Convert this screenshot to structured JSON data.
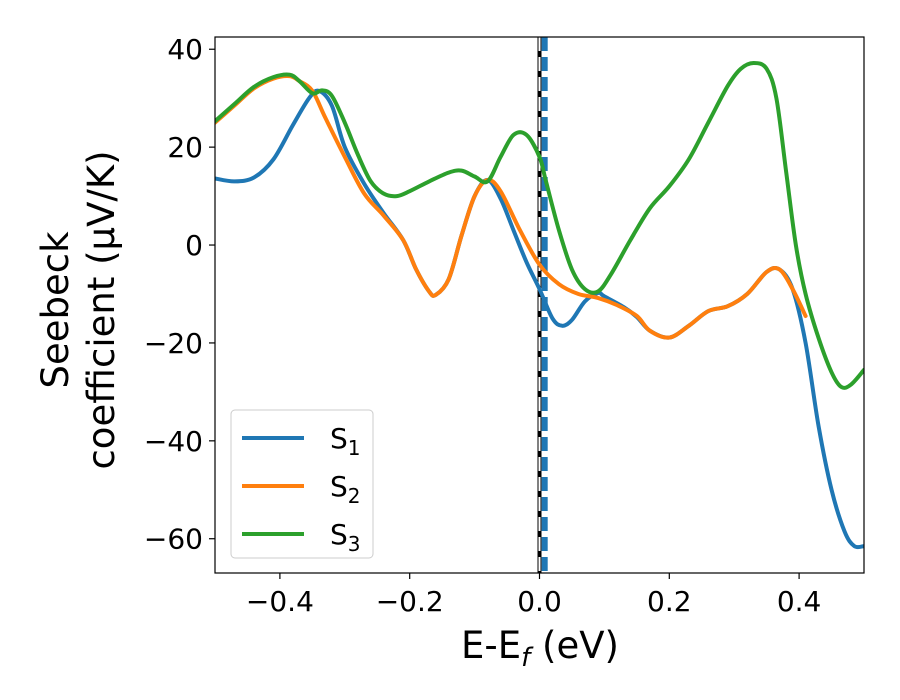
{
  "chart_data": {
    "type": "line",
    "xlabel": "E-E_f (eV)",
    "ylabel_line1": "Seebeck",
    "ylabel_line2": "coefficient  (μV/K)",
    "xlim": [
      -0.5,
      0.5
    ],
    "ylim": [
      -67,
      42.5
    ],
    "grid": false,
    "legend_position": "lower-left",
    "x_ticks": [
      -0.4,
      -0.2,
      0.0,
      0.2,
      0.4
    ],
    "x_tick_labels": [
      "−0.4",
      "−0.2",
      "0.0",
      "0.2",
      "0.4"
    ],
    "y_ticks": [
      -60,
      -40,
      -20,
      0,
      20,
      40
    ],
    "y_tick_labels": [
      "−60",
      "−40",
      "−20",
      "0",
      "20",
      "40"
    ],
    "vlines": [
      {
        "x": 0.0,
        "color": "#000000",
        "style": "solid"
      },
      {
        "x": 0.0,
        "color": "#ffffff",
        "style": "dashed"
      },
      {
        "x": 0.008,
        "color": "#1f77b4",
        "style": "dashed"
      }
    ],
    "series": [
      {
        "name": "S1",
        "color": "#1f77b4",
        "points": [
          [
            -0.5,
            13.6
          ],
          [
            -0.47,
            13.0
          ],
          [
            -0.44,
            13.8
          ],
          [
            -0.41,
            17.5
          ],
          [
            -0.38,
            24.5
          ],
          [
            -0.355,
            30.0
          ],
          [
            -0.34,
            31.5
          ],
          [
            -0.32,
            28.5
          ],
          [
            -0.3,
            20.0
          ],
          [
            -0.27,
            12.5
          ],
          [
            -0.24,
            6.5
          ],
          [
            -0.21,
            1.0
          ],
          [
            -0.19,
            -5.0
          ],
          [
            -0.17,
            -9.5
          ],
          [
            -0.16,
            -10.2
          ],
          [
            -0.14,
            -7.0
          ],
          [
            -0.12,
            2.0
          ],
          [
            -0.1,
            10.0
          ],
          [
            -0.08,
            13.3
          ],
          [
            -0.06,
            9.5
          ],
          [
            -0.04,
            3.0
          ],
          [
            -0.02,
            -3.5
          ],
          [
            0.0,
            -9.0
          ],
          [
            0.02,
            -15.0
          ],
          [
            0.035,
            -16.5
          ],
          [
            0.05,
            -15.3
          ],
          [
            0.07,
            -11.5
          ],
          [
            0.09,
            -9.8
          ],
          [
            0.1,
            -10.5
          ],
          [
            0.13,
            -12.7
          ],
          [
            0.15,
            -14.7
          ],
          [
            0.17,
            -17.5
          ],
          [
            0.2,
            -18.9
          ],
          [
            0.23,
            -16.5
          ],
          [
            0.26,
            -13.5
          ],
          [
            0.29,
            -12.5
          ],
          [
            0.32,
            -10.0
          ],
          [
            0.35,
            -5.5
          ],
          [
            0.37,
            -5.0
          ],
          [
            0.39,
            -9.0
          ],
          [
            0.41,
            -20.0
          ],
          [
            0.43,
            -37.0
          ],
          [
            0.45,
            -50.0
          ],
          [
            0.47,
            -58.5
          ],
          [
            0.485,
            -61.5
          ],
          [
            0.5,
            -61.5
          ]
        ]
      },
      {
        "name": "S2",
        "color": "#ff7f0e",
        "points": [
          [
            -0.5,
            25.0
          ],
          [
            -0.47,
            28.5
          ],
          [
            -0.44,
            32.0
          ],
          [
            -0.41,
            34.0
          ],
          [
            -0.385,
            34.5
          ],
          [
            -0.37,
            33.5
          ],
          [
            -0.35,
            31.5
          ],
          [
            -0.33,
            26.0
          ],
          [
            -0.3,
            18.0
          ],
          [
            -0.27,
            10.5
          ],
          [
            -0.24,
            6.0
          ],
          [
            -0.21,
            1.0
          ],
          [
            -0.19,
            -5.0
          ],
          [
            -0.17,
            -9.5
          ],
          [
            -0.16,
            -10.2
          ],
          [
            -0.14,
            -7.0
          ],
          [
            -0.12,
            2.0
          ],
          [
            -0.1,
            10.0
          ],
          [
            -0.08,
            13.3
          ],
          [
            -0.06,
            11.0
          ],
          [
            -0.03,
            3.0
          ],
          [
            0.0,
            -4.0
          ],
          [
            0.03,
            -8.0
          ],
          [
            0.06,
            -10.0
          ],
          [
            0.09,
            -10.8
          ],
          [
            0.12,
            -12.3
          ],
          [
            0.15,
            -14.5
          ],
          [
            0.17,
            -17.5
          ],
          [
            0.2,
            -18.9
          ],
          [
            0.23,
            -16.5
          ],
          [
            0.26,
            -13.5
          ],
          [
            0.29,
            -12.5
          ],
          [
            0.32,
            -10.0
          ],
          [
            0.35,
            -5.5
          ],
          [
            0.37,
            -5.0
          ],
          [
            0.39,
            -9.0
          ],
          [
            0.41,
            -14.5
          ]
        ]
      },
      {
        "name": "S3",
        "color": "#2ca02c",
        "points": [
          [
            -0.5,
            25.3
          ],
          [
            -0.47,
            28.8
          ],
          [
            -0.44,
            32.3
          ],
          [
            -0.41,
            34.3
          ],
          [
            -0.385,
            34.8
          ],
          [
            -0.37,
            33.5
          ],
          [
            -0.35,
            31.0
          ],
          [
            -0.335,
            31.6
          ],
          [
            -0.32,
            30.5
          ],
          [
            -0.3,
            25.0
          ],
          [
            -0.28,
            18.5
          ],
          [
            -0.26,
            13.0
          ],
          [
            -0.24,
            10.5
          ],
          [
            -0.22,
            10.0
          ],
          [
            -0.2,
            11.0
          ],
          [
            -0.17,
            13.0
          ],
          [
            -0.14,
            14.8
          ],
          [
            -0.12,
            15.2
          ],
          [
            -0.1,
            14.0
          ],
          [
            -0.08,
            13.0
          ],
          [
            -0.06,
            18.0
          ],
          [
            -0.04,
            22.5
          ],
          [
            -0.02,
            22.5
          ],
          [
            0.0,
            18.0
          ],
          [
            0.01,
            13.0
          ],
          [
            0.03,
            3.0
          ],
          [
            0.05,
            -5.0
          ],
          [
            0.07,
            -9.0
          ],
          [
            0.09,
            -9.5
          ],
          [
            0.11,
            -6.0
          ],
          [
            0.14,
            1.0
          ],
          [
            0.17,
            7.5
          ],
          [
            0.2,
            12.0
          ],
          [
            0.23,
            17.5
          ],
          [
            0.26,
            25.0
          ],
          [
            0.29,
            32.5
          ],
          [
            0.31,
            36.0
          ],
          [
            0.33,
            37.2
          ],
          [
            0.35,
            36.0
          ],
          [
            0.365,
            30.0
          ],
          [
            0.38,
            15.0
          ],
          [
            0.395,
            0.0
          ],
          [
            0.41,
            -10.0
          ],
          [
            0.43,
            -19.0
          ],
          [
            0.45,
            -26.0
          ],
          [
            0.465,
            -29.0
          ],
          [
            0.48,
            -28.5
          ],
          [
            0.5,
            -25.5
          ]
        ]
      }
    ]
  },
  "legend": {
    "items": [
      {
        "base": "S",
        "sub": "1"
      },
      {
        "base": "S",
        "sub": "2"
      },
      {
        "base": "S",
        "sub": "3"
      }
    ]
  }
}
